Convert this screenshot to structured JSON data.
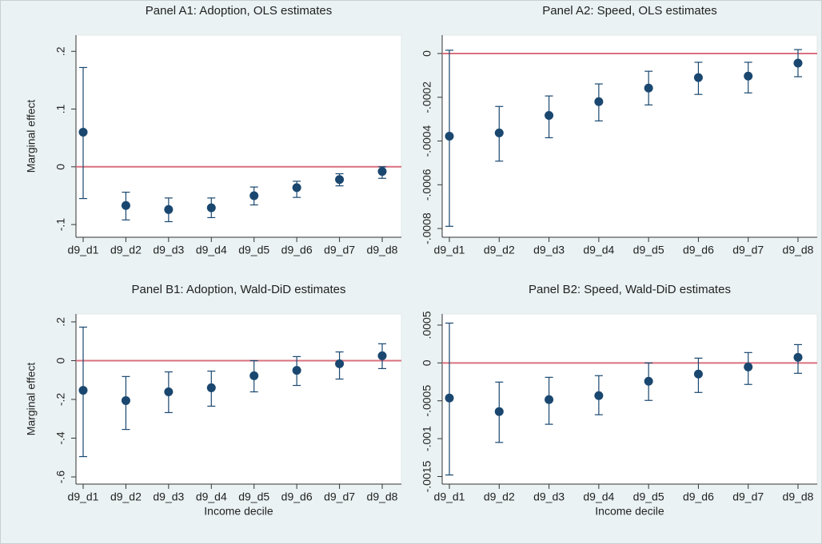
{
  "chart_data": [
    {
      "type": "errorbar",
      "title": "Panel A1: Adoption, OLS estimates",
      "ylabel": "Marginal effect",
      "categories": [
        "d9_d1",
        "d9_d2",
        "d9_d3",
        "d9_d4",
        "d9_d5",
        "d9_d6",
        "d9_d7",
        "d9_d8"
      ],
      "values": [
        0.06,
        -0.067,
        -0.074,
        -0.071,
        -0.05,
        -0.036,
        -0.022,
        -0.008
      ],
      "ci_low": [
        -0.055,
        -0.092,
        -0.095,
        -0.088,
        -0.066,
        -0.053,
        -0.033,
        -0.02
      ],
      "ci_high": [
        0.172,
        -0.044,
        -0.054,
        -0.054,
        -0.035,
        -0.025,
        -0.012,
        0.0
      ],
      "color": "#1a476f",
      "refline": 0,
      "refline_color": "#d9707f",
      "ylim": [
        -0.122,
        0.228
      ],
      "yticks": [
        {
          "value": 0.2,
          "label": ".2"
        },
        {
          "value": 0.1,
          "label": ".1"
        },
        0,
        {
          "value": -0.1,
          "label": "-.1"
        }
      ]
    },
    {
      "type": "errorbar",
      "title": "Panel A2: Speed, OLS estimates",
      "categories": [
        "d9_d1",
        "d9_d2",
        "d9_d3",
        "d9_d4",
        "d9_d5",
        "d9_d6",
        "d9_d7",
        "d9_d8"
      ],
      "values": [
        -0.000378,
        -0.000363,
        -0.000283,
        -0.00022,
        -0.000158,
        -0.00011,
        -0.000103,
        -4.4e-05
      ],
      "ci_low": [
        -0.00079,
        -0.000492,
        -0.000385,
        -0.000308,
        -0.000235,
        -0.000187,
        -0.00018,
        -0.000106
      ],
      "ci_high": [
        1.5e-05,
        -0.000242,
        -0.000194,
        -0.000139,
        -8.1e-05,
        -4e-05,
        -4e-05,
        1.8e-05
      ],
      "color": "#1a476f",
      "refline": 0,
      "refline_color": "#d9707f",
      "ylim": [
        -0.00084,
        8.4e-05
      ],
      "yticks": [
        0,
        {
          "value": -0.0002,
          "label": "-.0002"
        },
        {
          "value": -0.0004,
          "label": "-.0004"
        },
        {
          "value": -0.0006,
          "label": "-.0006"
        },
        {
          "value": -0.0008,
          "label": "-.0008"
        }
      ]
    },
    {
      "type": "errorbar",
      "title": "Panel B1: Adoption, Wald-DiD estimates",
      "ylabel": "Marginal effect",
      "xlabel": "Income decile",
      "categories": [
        "d9_d1",
        "d9_d2",
        "d9_d3",
        "d9_d4",
        "d9_d5",
        "d9_d6",
        "d9_d7",
        "d9_d8"
      ],
      "values": [
        -0.153,
        -0.206,
        -0.161,
        -0.14,
        -0.078,
        -0.05,
        -0.016,
        0.025
      ],
      "ci_low": [
        -0.495,
        -0.355,
        -0.268,
        -0.235,
        -0.161,
        -0.128,
        -0.095,
        -0.041
      ],
      "ci_high": [
        0.173,
        -0.082,
        -0.058,
        -0.054,
        0.0,
        0.021,
        0.045,
        0.087
      ],
      "color": "#1a476f",
      "refline": 0,
      "refline_color": "#d9707f",
      "ylim": [
        -0.637,
        0.241
      ],
      "yticks": [
        {
          "value": 0.2,
          "label": ".2"
        },
        0,
        {
          "value": -0.2,
          "label": "-.2"
        },
        {
          "value": -0.4,
          "label": "-.4"
        },
        {
          "value": -0.6,
          "label": "-.6"
        }
      ]
    },
    {
      "type": "errorbar",
      "title": "Panel B2: Speed, Wald-DiD estimates",
      "xlabel": "Income decile",
      "categories": [
        "d9_d1",
        "d9_d2",
        "d9_d3",
        "d9_d4",
        "d9_d5",
        "d9_d6",
        "d9_d7",
        "d9_d8"
      ],
      "values": [
        -0.000463,
        -0.000642,
        -0.000484,
        -0.000432,
        -0.000242,
        -0.000147,
        -5.3e-05,
        7.4e-05
      ],
      "ci_low": [
        -0.00148,
        -0.00105,
        -0.00081,
        -0.000684,
        -0.000495,
        -0.00039,
        -0.000284,
        -0.000137
      ],
      "ci_high": [
        0.000526,
        -0.000253,
        -0.00019,
        -0.000168,
        0.0,
        6.3e-05,
        0.000137,
        0.000242
      ],
      "color": "#1a476f",
      "refline": 0,
      "refline_color": "#d9707f",
      "ylim": [
        -0.0016,
        0.000647
      ],
      "yticks": [
        {
          "value": 0.0005,
          "label": ".0005"
        },
        0,
        {
          "value": -0.0005,
          "label": "-.0005"
        },
        {
          "value": -0.001,
          "label": "-.001"
        },
        {
          "value": -0.0015,
          "label": "-.0015"
        }
      ]
    }
  ]
}
